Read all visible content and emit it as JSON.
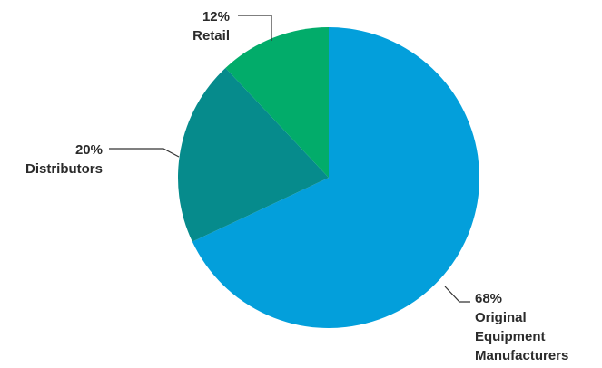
{
  "chart_data": {
    "type": "pie",
    "slices": [
      {
        "label_lines": [
          "Original",
          "Equipment",
          "Manufacturers"
        ],
        "value": 68,
        "value_label": "68%",
        "color": "#039fdb"
      },
      {
        "label_lines": [
          "Distributors"
        ],
        "value": 20,
        "value_label": "20%",
        "color": "#068b8c"
      },
      {
        "label_lines": [
          "Retail"
        ],
        "value": 12,
        "value_label": "12%",
        "color": "#02ac6a"
      }
    ],
    "start_angle_deg": 0,
    "direction": "clockwise",
    "legend": "none",
    "grid": false
  }
}
